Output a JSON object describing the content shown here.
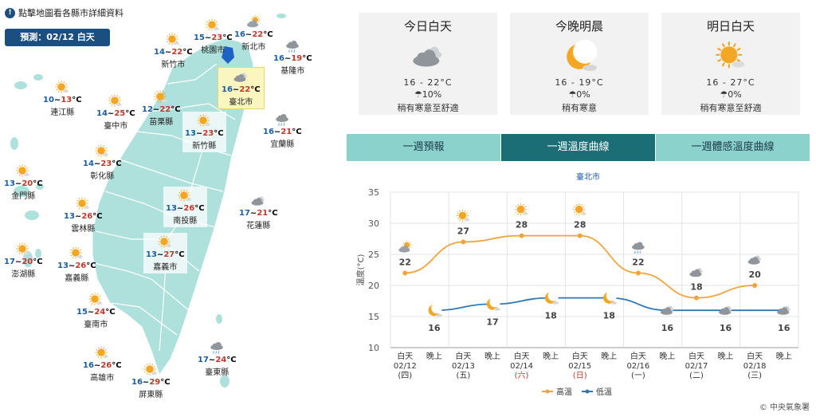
{
  "map": {
    "hint": "點擊地圖看各縣市詳細資料",
    "forecast_label": "預測：02/12 白天",
    "cities": [
      {
        "id": "taoyuan",
        "name": "桃園市",
        "low": "15",
        "high": "23",
        "icon": "sunny-icon"
      },
      {
        "id": "newtaipei",
        "name": "新北市",
        "low": "16",
        "high": "22",
        "icon": "cloudy-sun-icon"
      },
      {
        "id": "hsinchucity",
        "name": "新竹市",
        "low": "14",
        "high": "22",
        "icon": "sunny-icon"
      },
      {
        "id": "keelung",
        "name": "基隆市",
        "low": "16",
        "high": "19",
        "icon": "rain-cloud-icon"
      },
      {
        "id": "taipei",
        "name": "臺北市",
        "low": "16",
        "high": "22",
        "icon": "cloudy-icon"
      },
      {
        "id": "lienchiang",
        "name": "連江縣",
        "low": "10",
        "high": "13",
        "icon": "sunny-icon"
      },
      {
        "id": "taichung",
        "name": "臺中市",
        "low": "14",
        "high": "25",
        "icon": "sunny-icon"
      },
      {
        "id": "miaoli",
        "name": "苗栗縣",
        "low": "12",
        "high": "22",
        "icon": "sunny-icon"
      },
      {
        "id": "hsinchucounty",
        "name": "新竹縣",
        "low": "13",
        "high": "23",
        "icon": "sunny-icon"
      },
      {
        "id": "yilan",
        "name": "宜蘭縣",
        "low": "16",
        "high": "21",
        "icon": "rain-cloud-icon"
      },
      {
        "id": "changhua",
        "name": "彰化縣",
        "low": "14",
        "high": "23",
        "icon": "sunny-icon"
      },
      {
        "id": "kinmen",
        "name": "金門縣",
        "low": "13",
        "high": "20",
        "icon": "sunny-icon"
      },
      {
        "id": "nantou",
        "name": "南投縣",
        "low": "13",
        "high": "26",
        "icon": "sunny-icon"
      },
      {
        "id": "hualien",
        "name": "花蓮縣",
        "low": "17",
        "high": "21",
        "icon": "cloudy-icon"
      },
      {
        "id": "yunlin",
        "name": "雲林縣",
        "low": "13",
        "high": "26",
        "icon": "sunny-icon"
      },
      {
        "id": "penghu",
        "name": "澎湖縣",
        "low": "17",
        "high": "20",
        "icon": "sunny-icon"
      },
      {
        "id": "chiayicounty",
        "name": "嘉義縣",
        "low": "13",
        "high": "26",
        "icon": "sunny-icon"
      },
      {
        "id": "chiayicity",
        "name": "嘉義市",
        "low": "13",
        "high": "27",
        "icon": "sunny-icon"
      },
      {
        "id": "tainan",
        "name": "臺南市",
        "low": "15",
        "high": "24",
        "icon": "sunny-icon"
      },
      {
        "id": "kaohsiung",
        "name": "高雄市",
        "low": "16",
        "high": "26",
        "icon": "sunny-icon"
      },
      {
        "id": "taitung",
        "name": "臺東縣",
        "low": "17",
        "high": "24",
        "icon": "rain-cloud-icon"
      },
      {
        "id": "pingtung",
        "name": "屏東縣",
        "low": "16",
        "high": "29",
        "icon": "sunny-icon"
      }
    ],
    "degree_unit": "°C",
    "temp_sep": "~",
    "colors": {
      "land": "#aee0dc",
      "border": "#ffffff",
      "hi": "#c0392b",
      "lo": "#1b5ea0"
    }
  },
  "cards": [
    {
      "title": "今日白天",
      "icon": "cloudy-icon",
      "range": "16 - 22°C",
      "rain": "10%",
      "desc": "稍有寒意至舒適"
    },
    {
      "title": "今晚明晨",
      "icon": "moon-icon",
      "range": "16 - 19°C",
      "rain": "0%",
      "desc": "稍有寒意"
    },
    {
      "title": "明日白天",
      "icon": "sunny-icon",
      "range": "16 - 27°C",
      "rain": "0%",
      "desc": "稍有寒意至舒適"
    }
  ],
  "rain_symbol": "☂",
  "tabs": [
    {
      "label": "一週預報",
      "active": false
    },
    {
      "label": "一週溫度曲線",
      "active": true
    },
    {
      "label": "一週體感溫度曲線",
      "active": false
    }
  ],
  "chart_data": {
    "type": "line",
    "title": "臺北市",
    "ylabel": "溫度(°C)",
    "ylim": [
      10,
      35
    ],
    "yticks": [
      10,
      15,
      20,
      25,
      30,
      35
    ],
    "x_labels": [
      {
        "period": "白天",
        "date": "02/12",
        "weekday": "(四)",
        "red": false
      },
      {
        "period": "晚上",
        "date": "",
        "weekday": "",
        "red": false
      },
      {
        "period": "白天",
        "date": "02/13",
        "weekday": "(五)",
        "red": false
      },
      {
        "period": "晚上",
        "date": "",
        "weekday": "",
        "red": false
      },
      {
        "period": "白天",
        "date": "02/14",
        "weekday": "(六)",
        "red": true
      },
      {
        "period": "晚上",
        "date": "",
        "weekday": "",
        "red": false
      },
      {
        "period": "白天",
        "date": "02/15",
        "weekday": "(日)",
        "red": true
      },
      {
        "period": "晚上",
        "date": "",
        "weekday": "",
        "red": false
      },
      {
        "period": "白天",
        "date": "02/16",
        "weekday": "(一)",
        "red": false
      },
      {
        "period": "晚上",
        "date": "",
        "weekday": "",
        "red": false
      },
      {
        "period": "白天",
        "date": "02/17",
        "weekday": "(二)",
        "red": false
      },
      {
        "period": "晚上",
        "date": "",
        "weekday": "",
        "red": false
      },
      {
        "period": "白天",
        "date": "02/18",
        "weekday": "(三)",
        "red": false
      },
      {
        "period": "晚上",
        "date": "",
        "weekday": "",
        "red": false
      }
    ],
    "series": [
      {
        "name": "高溫",
        "color": "#f0a43a",
        "x_index": [
          0,
          2,
          4,
          6,
          8,
          10,
          12
        ],
        "values": [
          22,
          27,
          28,
          28,
          22,
          18,
          20
        ],
        "icons": [
          "cloudy-sun-icon",
          "sunny-icon",
          "sunny-icon",
          "sunny-icon",
          "rain-cloud-icon",
          "cloudy-icon",
          "cloudy-icon"
        ]
      },
      {
        "name": "低溫",
        "color": "#2f78b5",
        "x_index": [
          1,
          3,
          5,
          7,
          9,
          11,
          13
        ],
        "values": [
          16,
          17,
          18,
          18,
          16,
          16,
          16
        ],
        "icons": [
          "moon-icon",
          "moon-icon",
          "moon-icon",
          "moon-icon",
          "cloudy-icon",
          "cloudy-icon",
          "cloudy-icon"
        ]
      }
    ],
    "legend_position": "bottom",
    "grid": true
  },
  "footer": "© 中央氣象署"
}
